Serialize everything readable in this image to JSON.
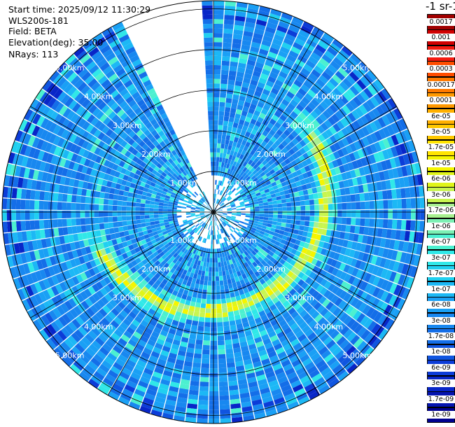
{
  "header": {
    "start_time": "Start time: 2025/09/12 11:30:29",
    "instrument": "WLS200s-181",
    "field": "Field: BETA",
    "elevation": "Elevation(deg): 35.00",
    "nrays": "NRays: 113"
  },
  "chart_data": {
    "type": "heatmap",
    "projection": "polar (PPI scan)",
    "field": "BETA",
    "elevation_deg": 35.0,
    "n_rays": 113,
    "range_rings_km": [
      1.0,
      2.0,
      3.0,
      4.0,
      5.0
    ],
    "range_ring_labels": [
      "1.00km",
      "2.00km",
      "3.00km",
      "4.00km",
      "5.00km"
    ],
    "max_range_km": 5.2,
    "missing_sector_deg": [
      -25,
      -2
    ],
    "colorbar": {
      "title": "-1 sr-1",
      "ticks": [
        "0.0017",
        "0.001",
        "0.0006",
        "0.0003",
        "0.00017",
        "0.0001",
        "6e-05",
        "3e-05",
        "1.7e-05",
        "1e-05",
        "6e-06",
        "3e-06",
        "1.7e-06",
        "1e-06",
        "6e-07",
        "3e-07",
        "1.7e-07",
        "1e-07",
        "6e-08",
        "3e-08",
        "1.7e-08",
        "1e-08",
        "6e-09",
        "3e-09",
        "1.7e-09",
        "1e-09"
      ],
      "colors": [
        "#a00000",
        "#d00000",
        "#f41a10",
        "#ff4d00",
        "#ff7a00",
        "#ff9900",
        "#ffb000",
        "#ffc800",
        "#ffe400",
        "#f5f500",
        "#e0f51a",
        "#c8f550",
        "#a8f090",
        "#7cf0b4",
        "#4cf0d0",
        "#30e8e8",
        "#20d0f0",
        "#1cb8f5",
        "#1aa0f5",
        "#1888f0",
        "#146ee8",
        "#1055e0",
        "#0c3cd8",
        "#0826c8",
        "#0414b0",
        "#000090"
      ]
    }
  }
}
